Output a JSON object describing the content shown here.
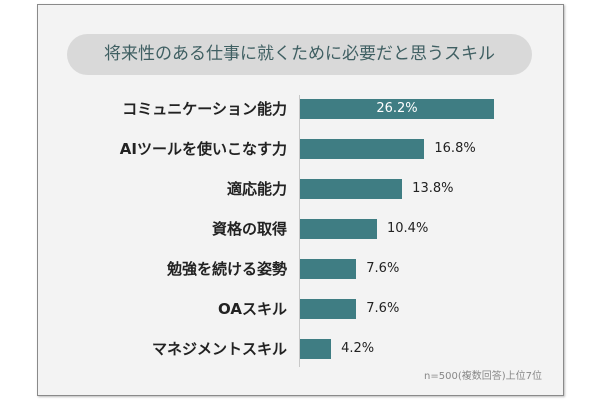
{
  "chart_data": {
    "type": "bar",
    "orientation": "horizontal",
    "title": "将来性のある仕事に就くために必要だと思うスキル",
    "categories": [
      "コミュニケーション能力",
      "AIツールを使いこなす力",
      "適応能力",
      "資格の取得",
      "勉強を続ける姿勢",
      "OAスキル",
      "マネジメントスキル"
    ],
    "values": [
      26.2,
      16.8,
      13.8,
      10.4,
      7.6,
      7.6,
      4.2
    ],
    "value_labels": [
      "26.2%",
      "16.8%",
      "13.8%",
      "10.4%",
      "7.6%",
      "7.6%",
      "4.2%"
    ],
    "unit": "%",
    "note": "n=500(複数回答)上位7位",
    "bar_color": "#3f7d83",
    "grid": false
  }
}
